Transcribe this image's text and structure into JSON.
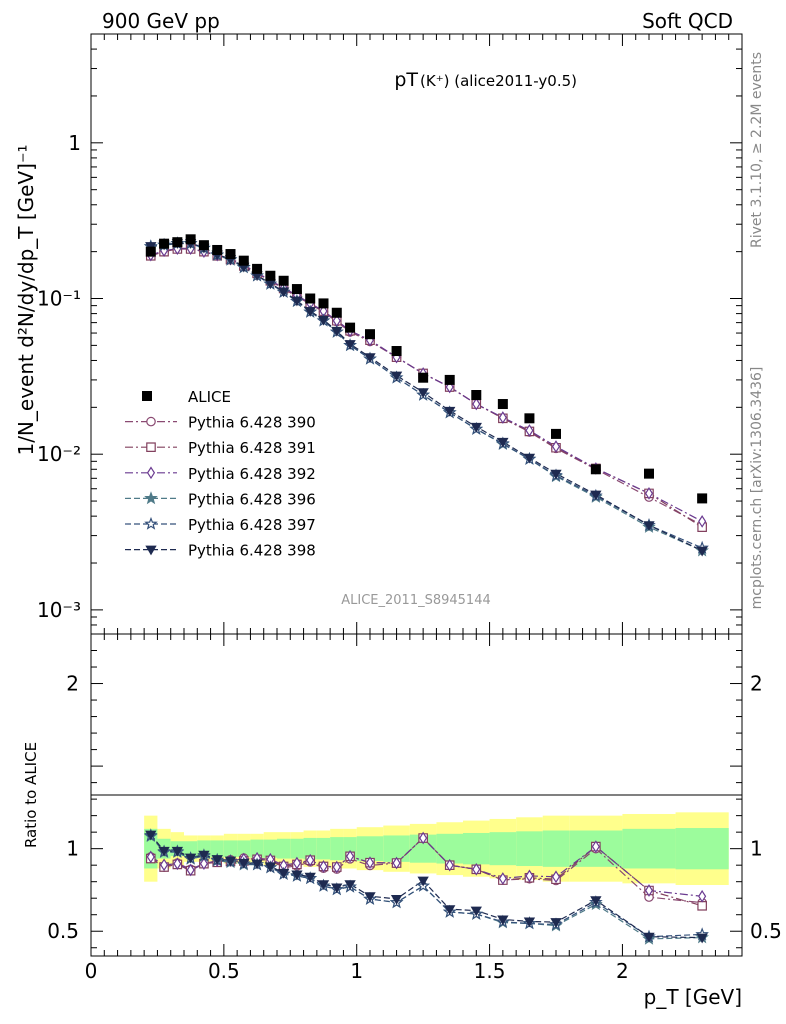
{
  "header": {
    "left": "900 GeV pp",
    "right": "Soft QCD"
  },
  "side_labels": {
    "rivet": "Rivet 3.1.10, ≥ 2.2M events",
    "mcplots": "mcplots.cern.ch [arXiv:1306.3436]"
  },
  "chart_data": {
    "type": "scatter",
    "title": "pT(K⁺) (alice2011-y0.5)",
    "title_main": "pT",
    "title_sub": "(K⁺) (alice2011-y0.5)",
    "analysis_label": "ALICE_2011_S8945144",
    "xlabel": "p_T [GeV]",
    "ylabel": "1/N_event d²N/dy/dp_T [GeV]⁻¹",
    "ratio_ylabel": "Ratio to ALICE",
    "xlim": [
      0,
      2.45
    ],
    "ylim": [
      0.0007,
      5
    ],
    "yscale": "log",
    "ratio_ylim": [
      0.35,
      2.3
    ],
    "x_ticks": [
      "0",
      "0.5",
      "1",
      "1.5",
      "2"
    ],
    "y_ticks": [
      "10⁻³",
      "10⁻²",
      "10⁻¹",
      "1"
    ],
    "ratio_ticks": [
      "0.5",
      "1",
      "2"
    ],
    "x": [
      0.225,
      0.275,
      0.325,
      0.375,
      0.425,
      0.475,
      0.525,
      0.575,
      0.625,
      0.675,
      0.725,
      0.775,
      0.825,
      0.875,
      0.925,
      0.975,
      1.05,
      1.15,
      1.25,
      1.35,
      1.45,
      1.55,
      1.65,
      1.75,
      1.9,
      2.1,
      2.3
    ],
    "band_edges": [
      0.2,
      0.25,
      0.3,
      0.35,
      0.4,
      0.45,
      0.5,
      0.55,
      0.6,
      0.65,
      0.7,
      0.75,
      0.8,
      0.85,
      0.9,
      0.95,
      1.0,
      1.1,
      1.2,
      1.3,
      1.4,
      1.5,
      1.6,
      1.7,
      1.8,
      2.0,
      2.2,
      2.4
    ],
    "stat_band": [
      0.12,
      0.06,
      0.045,
      0.045,
      0.05,
      0.05,
      0.05,
      0.05,
      0.055,
      0.055,
      0.06,
      0.06,
      0.065,
      0.065,
      0.07,
      0.07,
      0.075,
      0.08,
      0.085,
      0.09,
      0.095,
      0.1,
      0.105,
      0.11,
      0.11,
      0.12,
      0.125
    ],
    "syst_band": [
      0.2,
      0.12,
      0.1,
      0.08,
      0.08,
      0.08,
      0.09,
      0.09,
      0.09,
      0.1,
      0.1,
      0.1,
      0.11,
      0.11,
      0.12,
      0.12,
      0.13,
      0.14,
      0.15,
      0.16,
      0.17,
      0.18,
      0.19,
      0.2,
      0.2,
      0.21,
      0.22
    ],
    "data": {
      "name": "ALICE",
      "values": [
        0.2,
        0.225,
        0.23,
        0.24,
        0.22,
        0.205,
        0.193,
        0.175,
        0.155,
        0.14,
        0.13,
        0.115,
        0.1,
        0.093,
        0.081,
        0.065,
        0.059,
        0.046,
        0.031,
        0.03,
        0.024,
        0.021,
        0.017,
        0.0135,
        0.008,
        0.0075,
        0.0052
      ]
    },
    "series": [
      {
        "name": "Pythia 6.428 390",
        "color": "#8a4a72",
        "marker": "circle-open",
        "dash": "8,3,2,3",
        "values": [
          0.19,
          0.2,
          0.21,
          0.21,
          0.2,
          0.19,
          0.18,
          0.165,
          0.145,
          0.13,
          0.115,
          0.103,
          0.092,
          0.082,
          0.071,
          0.061,
          0.053,
          0.042,
          0.033,
          0.027,
          0.021,
          0.017,
          0.0139,
          0.0109,
          0.008,
          0.0053,
          0.0035
        ]
      },
      {
        "name": "Pythia 6.428 391",
        "color": "#82405e",
        "marker": "square-open",
        "dash": "8,3,2,3",
        "values": [
          0.188,
          0.2,
          0.208,
          0.208,
          0.2,
          0.188,
          0.178,
          0.162,
          0.145,
          0.13,
          0.116,
          0.104,
          0.093,
          0.083,
          0.072,
          0.062,
          0.054,
          0.042,
          0.033,
          0.027,
          0.021,
          0.017,
          0.014,
          0.011,
          0.0081,
          0.0056,
          0.0034
        ]
      },
      {
        "name": "Pythia 6.428 392",
        "color": "#6a3a90",
        "marker": "diamond-open",
        "dash": "8,3,2,3",
        "values": [
          0.19,
          0.203,
          0.209,
          0.209,
          0.2,
          0.19,
          0.179,
          0.164,
          0.146,
          0.131,
          0.117,
          0.105,
          0.093,
          0.083,
          0.072,
          0.062,
          0.054,
          0.042,
          0.033,
          0.027,
          0.021,
          0.0172,
          0.0142,
          0.0112,
          0.0081,
          0.0056,
          0.0037
        ]
      },
      {
        "name": "Pythia 6.428 396",
        "color": "#4f7a88",
        "marker": "star-filled",
        "dash": "6,3",
        "values": [
          0.215,
          0.22,
          0.225,
          0.225,
          0.21,
          0.19,
          0.177,
          0.158,
          0.14,
          0.124,
          0.11,
          0.096,
          0.082,
          0.072,
          0.061,
          0.05,
          0.041,
          0.031,
          0.024,
          0.0185,
          0.0145,
          0.0116,
          0.0093,
          0.0072,
          0.0053,
          0.0034,
          0.0024
        ]
      },
      {
        "name": "Pythia 6.428 397",
        "color": "#34507a",
        "marker": "star-open",
        "dash": "6,3",
        "values": [
          0.216,
          0.221,
          0.226,
          0.226,
          0.211,
          0.191,
          0.178,
          0.159,
          0.14,
          0.124,
          0.11,
          0.096,
          0.082,
          0.072,
          0.061,
          0.05,
          0.041,
          0.031,
          0.024,
          0.0185,
          0.0145,
          0.0117,
          0.0093,
          0.0073,
          0.0054,
          0.0035,
          0.0025
        ]
      },
      {
        "name": "Pythia 6.428 398",
        "color": "#1e2a50",
        "marker": "triangle-down-filled",
        "dash": "6,3",
        "values": [
          0.217,
          0.222,
          0.227,
          0.227,
          0.212,
          0.192,
          0.179,
          0.16,
          0.141,
          0.125,
          0.111,
          0.097,
          0.083,
          0.073,
          0.062,
          0.051,
          0.042,
          0.032,
          0.025,
          0.019,
          0.015,
          0.012,
          0.0095,
          0.0075,
          0.0055,
          0.0035,
          0.0024
        ]
      }
    ]
  }
}
